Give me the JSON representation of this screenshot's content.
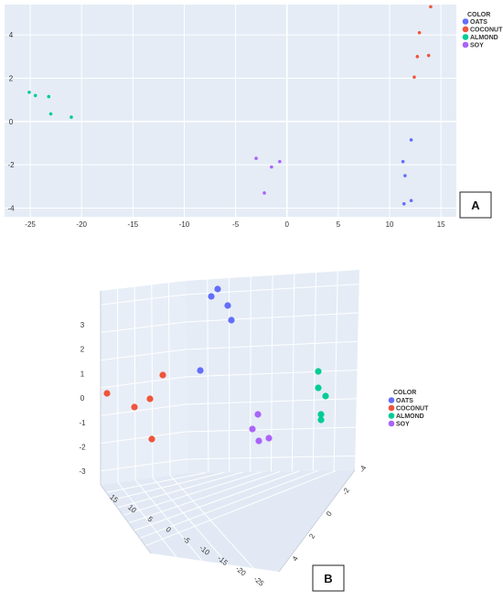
{
  "panel_labels": {
    "a": "A",
    "b": "B"
  },
  "legend": {
    "title": "COLOR",
    "entries": [
      {
        "name": "OATS",
        "color": "#636efa"
      },
      {
        "name": "COCONUT",
        "color": "#ef553b"
      },
      {
        "name": "ALMOND",
        "color": "#00cc96"
      },
      {
        "name": "SOY",
        "color": "#ab63fa"
      }
    ]
  },
  "chart_data": [
    {
      "type": "scatter",
      "panel": "A",
      "xlim": [
        -27.5,
        16.5
      ],
      "ylim": [
        -4.4,
        5.4
      ],
      "x_ticks": [
        "-25",
        "-20",
        "-15",
        "-10",
        "-5",
        "0",
        "5",
        "10",
        "15"
      ],
      "y_ticks": [
        "-4",
        "-2",
        "0",
        "2",
        "4"
      ],
      "grid": true,
      "legend_position": "top-right",
      "series": [
        {
          "name": "OATS",
          "color": "#636efa",
          "x": [
            12.1,
            11.3,
            11.5,
            12.1,
            11.4
          ],
          "y": [
            -0.85,
            -1.85,
            -2.5,
            -3.65,
            -3.8
          ]
        },
        {
          "name": "COCONUT",
          "color": "#ef553b",
          "x": [
            14.0,
            12.9,
            13.8,
            12.7,
            12.4
          ],
          "y": [
            5.3,
            4.1,
            3.05,
            3.0,
            2.05
          ]
        },
        {
          "name": "ALMOND",
          "color": "#00cc96",
          "x": [
            -25.1,
            -24.5,
            -23.2,
            -23.0,
            -21.0
          ],
          "y": [
            1.35,
            1.2,
            1.15,
            0.35,
            0.2
          ]
        },
        {
          "name": "SOY",
          "color": "#ab63fa",
          "x": [
            -3.0,
            -0.7,
            -1.5,
            -2.2
          ],
          "y": [
            -1.7,
            -1.85,
            -2.1,
            -3.3
          ]
        }
      ]
    },
    {
      "type": "scatter",
      "panel": "B",
      "projection": "3d",
      "z_ticks": [
        "3",
        "2",
        "1",
        "0",
        "-1",
        "-2",
        "-3"
      ],
      "x_ticks": [
        "15",
        "10",
        "5",
        "0",
        "-5",
        "-10",
        "-15",
        "-20",
        "-25"
      ],
      "y_ticks": [
        "-4",
        "-2",
        "0",
        "2",
        "4"
      ],
      "grid": true,
      "legend_position": "right",
      "series": [
        {
          "name": "OATS",
          "color": "#636efa"
        },
        {
          "name": "COCONUT",
          "color": "#ef553b"
        },
        {
          "name": "ALMOND",
          "color": "#00cc96"
        },
        {
          "name": "SOY",
          "color": "#ab63fa"
        }
      ]
    }
  ]
}
